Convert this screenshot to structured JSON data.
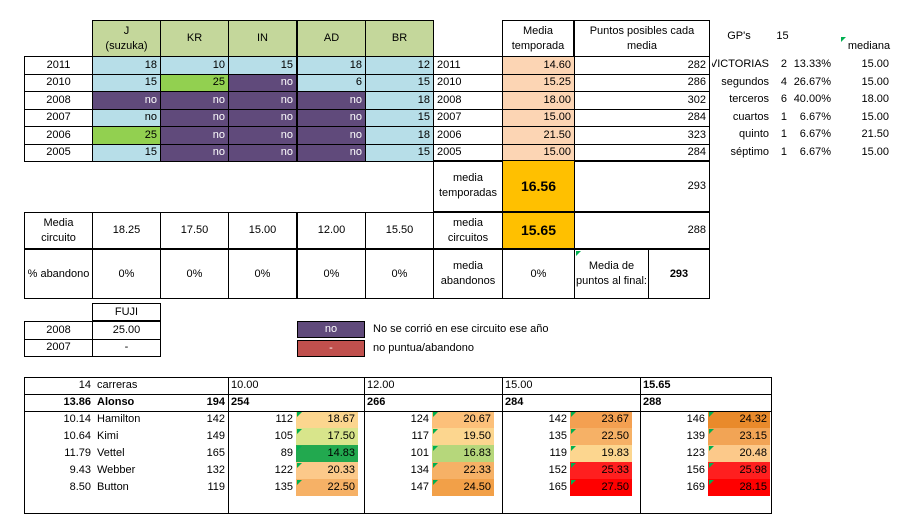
{
  "top_headers": {
    "circuits": [
      "J\n(suzuka)",
      "KR",
      "IN",
      "AD",
      "BR"
    ],
    "media_temporada": "Media temporada",
    "puntos_posibles": "Puntos posibles cada media"
  },
  "season_rows": [
    {
      "year": "2011",
      "cells": [
        {
          "v": "18",
          "c": "blue"
        },
        {
          "v": "10",
          "c": "blue"
        },
        {
          "v": "15",
          "c": "blue"
        },
        {
          "v": "18",
          "c": "blue"
        },
        {
          "v": "12",
          "c": "blue"
        }
      ],
      "year2": "2011",
      "media": "14.60",
      "puntos": "282"
    },
    {
      "year": "2010",
      "cells": [
        {
          "v": "15",
          "c": "blue"
        },
        {
          "v": "25",
          "c": "green"
        },
        {
          "v": "no",
          "c": "purple"
        },
        {
          "v": "6",
          "c": "blue"
        },
        {
          "v": "15",
          "c": "blue"
        }
      ],
      "year2": "2010",
      "media": "15.25",
      "puntos": "286"
    },
    {
      "year": "2008",
      "cells": [
        {
          "v": "no",
          "c": "purple"
        },
        {
          "v": "no",
          "c": "purple"
        },
        {
          "v": "no",
          "c": "purple"
        },
        {
          "v": "no",
          "c": "purple"
        },
        {
          "v": "18",
          "c": "blue"
        }
      ],
      "year2": "2008",
      "media": "18.00",
      "puntos": "302"
    },
    {
      "year": "2007",
      "cells": [
        {
          "v": "no",
          "c": "blue"
        },
        {
          "v": "no",
          "c": "purple"
        },
        {
          "v": "no",
          "c": "purple"
        },
        {
          "v": "no",
          "c": "purple"
        },
        {
          "v": "15",
          "c": "blue"
        }
      ],
      "year2": "2007",
      "media": "15.00",
      "puntos": "284"
    },
    {
      "year": "2006",
      "cells": [
        {
          "v": "25",
          "c": "green"
        },
        {
          "v": "no",
          "c": "purple"
        },
        {
          "v": "no",
          "c": "purple"
        },
        {
          "v": "no",
          "c": "purple"
        },
        {
          "v": "18",
          "c": "blue"
        }
      ],
      "year2": "2006",
      "media": "21.50",
      "puntos": "323"
    },
    {
      "year": "2005",
      "cells": [
        {
          "v": "15",
          "c": "blue"
        },
        {
          "v": "no",
          "c": "purple"
        },
        {
          "v": "no",
          "c": "purple"
        },
        {
          "v": "no",
          "c": "purple"
        },
        {
          "v": "15",
          "c": "blue"
        }
      ],
      "year2": "2005",
      "media": "15.00",
      "puntos": "284"
    }
  ],
  "summary": {
    "media_temporadas_label": "media temporadas",
    "media_temporadas_value": "16.56",
    "media_temporadas_puntos": "293",
    "media_circuito_label": "Media circuito",
    "media_circuito_values": [
      "18.25",
      "17.50",
      "15.00",
      "12.00",
      "15.50"
    ],
    "media_circuitos_label": "media circuitos",
    "media_circuitos_value": "15.65",
    "media_circuitos_puntos": "288",
    "abandono_label": "% abandono",
    "abandono_values": [
      "0%",
      "0%",
      "0%",
      "0%",
      "0%"
    ],
    "media_abandonos_label": "media abandonos",
    "media_abandonos_value": "0%",
    "media_puntos_final_label": "Media de puntos al final:",
    "media_puntos_final_value": "293"
  },
  "gps": {
    "label": "GP's",
    "count": "15",
    "mediana_label": "mediana",
    "rows": [
      {
        "name": "VICTORIAS",
        "n": "2",
        "pct": "13.33%",
        "med": "15.00"
      },
      {
        "name": "segundos",
        "n": "4",
        "pct": "26.67%",
        "med": "15.00"
      },
      {
        "name": "terceros",
        "n": "6",
        "pct": "40.00%",
        "med": "18.00"
      },
      {
        "name": "cuartos",
        "n": "1",
        "pct": "6.67%",
        "med": "15.00"
      },
      {
        "name": "quinto",
        "n": "1",
        "pct": "6.67%",
        "med": "21.50"
      },
      {
        "name": "séptimo",
        "n": "1",
        "pct": "6.67%",
        "med": "15.00"
      }
    ]
  },
  "fuji": {
    "header": "FUJI",
    "rows": [
      {
        "year": "2008",
        "v": "25.00"
      },
      {
        "year": "2007",
        "v": "-"
      }
    ]
  },
  "legend": {
    "purple_label": "no",
    "purple_text": "No se corrió en ese circuito ese año",
    "red_label": "-",
    "red_text": "no puntua/abandono",
    "purple_color": "#604a7b",
    "red_color": "#c0504d"
  },
  "standings": {
    "header": {
      "count": "14",
      "label": "carreras",
      "v1": "10.00",
      "v2": "12.00",
      "v3": "15.00",
      "v4": "15.65"
    },
    "leader": {
      "avg": "13.86",
      "name": "Alonso",
      "pts": "194",
      "p1": "254",
      "p2": "266",
      "p3": "284",
      "p4": "288"
    },
    "rows": [
      {
        "avg": "10.14",
        "name": "Hamilton",
        "pts": "142",
        "p1": "112",
        "d1": "18.67",
        "p2": "124",
        "d2": "20.67",
        "p3": "142",
        "d3": "23.67",
        "p4": "146",
        "d4": "24.32",
        "c1": "#fcd68f",
        "c2": "#fcc07a",
        "c3": "#f4a051",
        "c4": "#e98a2b"
      },
      {
        "avg": "10.64",
        "name": "Kimi",
        "pts": "149",
        "p1": "105",
        "d1": "17.50",
        "p2": "117",
        "d2": "19.50",
        "p3": "135",
        "d3": "22.50",
        "p4": "139",
        "d4": "23.15",
        "c1": "#d8e58b",
        "c2": "#fcd68f",
        "c3": "#f6b166",
        "c4": "#f2a455"
      },
      {
        "avg": "11.79",
        "name": "Vettel",
        "pts": "165",
        "p1": "89",
        "d1": "14.83",
        "p2": "101",
        "d2": "16.83",
        "p3": "119",
        "d3": "19.83",
        "p4": "123",
        "d4": "20.48",
        "c1": "#22a94f",
        "c2": "#b6d77b",
        "c3": "#fcd68f",
        "c4": "#fcc98a"
      },
      {
        "avg": "9.43",
        "name": "Webber",
        "pts": "132",
        "p1": "122",
        "d1": "20.33",
        "p2": "134",
        "d2": "22.33",
        "p3": "152",
        "d3": "25.33",
        "p4": "156",
        "d4": "25.98",
        "c1": "#fcc98a",
        "c2": "#f6b166",
        "c3": "#ff1f1f",
        "c4": "#ff1f1f"
      },
      {
        "avg": "8.50",
        "name": "Button",
        "pts": "119",
        "p1": "135",
        "d1": "22.50",
        "p2": "147",
        "d2": "24.50",
        "p3": "165",
        "d3": "27.50",
        "p4": "169",
        "d4": "28.15",
        "c1": "#f6b166",
        "c2": "#f2a048",
        "c3": "#ff0000",
        "c4": "#ff0000"
      }
    ]
  }
}
